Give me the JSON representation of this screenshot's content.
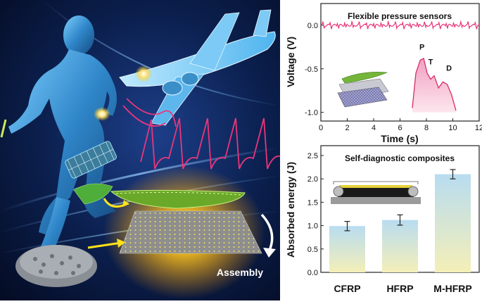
{
  "illustration": {
    "assembly_label": "Assembly",
    "colors": {
      "background": "#0a1a3a",
      "figure": "#3fa6e0",
      "signal": "#e8367a",
      "glow": "#ffd23a",
      "sensor_film": "#7ac22a"
    }
  },
  "chart_data": [
    {
      "type": "line",
      "title": "Flexible pressure sensors",
      "xlabel": "Time (s)",
      "ylabel": "Voltage (V)",
      "xlim": [
        0,
        12
      ],
      "ylim": [
        -1.1,
        0.25
      ],
      "x_ticks": [
        "0",
        "2",
        "4",
        "6",
        "8",
        "10",
        "12"
      ],
      "y_ticks": [
        "0.0",
        "-0.5",
        "-1.0"
      ],
      "series": [
        {
          "baseline": 0.0,
          "noise_amplitude": 0.04,
          "period_s": 0.55
        }
      ],
      "inset": {
        "peak_labels": [
          "P",
          "T",
          "D"
        ],
        "x": [
          0,
          0.08,
          0.18,
          0.26,
          0.34,
          0.42,
          0.5,
          0.6,
          0.7,
          0.8,
          0.9,
          1.0
        ],
        "y": [
          -0.95,
          -0.55,
          -0.4,
          -0.38,
          -0.55,
          -0.62,
          -0.58,
          -0.72,
          -0.65,
          -0.68,
          -0.8,
          -0.98
        ]
      }
    },
    {
      "type": "bar",
      "title": "Self-diagnostic composites",
      "ylabel": "Absorbed energy (J)",
      "categories": [
        "CFRP",
        "HFRP",
        "M-HFRP"
      ],
      "values": [
        0.99,
        1.12,
        2.1
      ],
      "errors": [
        0.1,
        0.11,
        0.1
      ],
      "ylim": [
        0,
        2.5
      ],
      "y_ticks": [
        "0.0",
        "0.5",
        "1.0",
        "1.5",
        "2.0",
        "2.5"
      ],
      "bar_colors": [
        "#b8dcf0",
        "#f4efb8"
      ]
    }
  ]
}
